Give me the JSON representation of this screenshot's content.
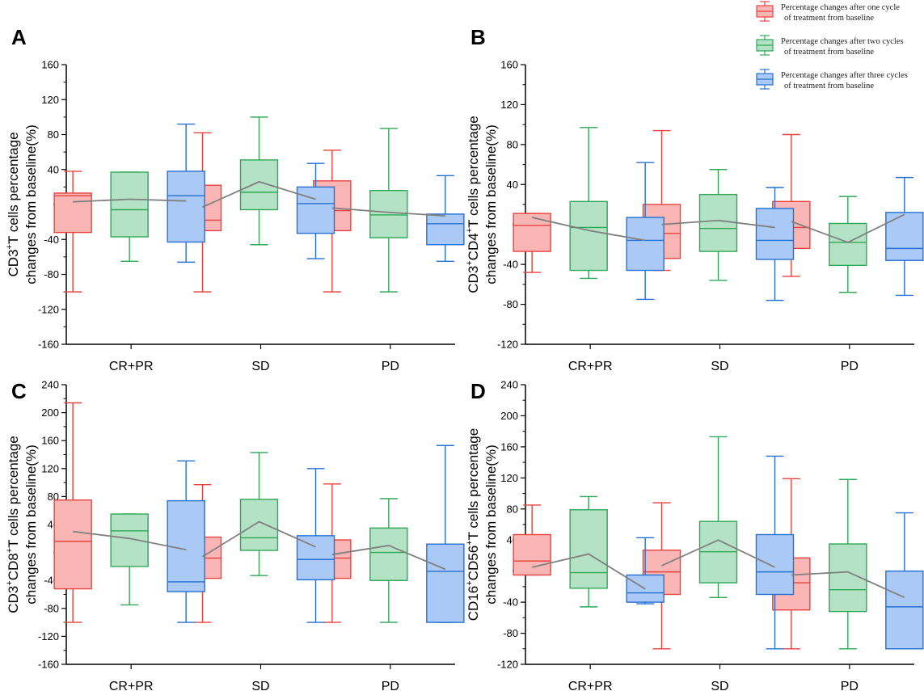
{
  "colors": {
    "red": "#e8423e",
    "red_fill": "#f9b6b4",
    "green": "#2ea855",
    "green_fill": "#b3e2c4",
    "blue": "#2470d4",
    "blue_fill": "#aacaf5",
    "mean_line": "#808080",
    "axis": "#000000"
  },
  "legend": {
    "entries": [
      {
        "line1": "Percentage changes after one cycle",
        "line2": "of treatment from baseline",
        "color": "red"
      },
      {
        "line1": "Percentage changes after two cycles",
        "line2": "of treatment from baseline",
        "color": "green"
      },
      {
        "line1": "Percentage changes after three cycles",
        "line2": "of treatment from baseline",
        "color": "blue"
      }
    ]
  },
  "chart_data": [
    {
      "panel": "A",
      "type": "box",
      "ylabel_parts": [
        "CD3",
        "+",
        "T cells percentage"
      ],
      "ylabel_line2": "changes from baseline(%)",
      "ylim": [
        -160,
        160
      ],
      "yticks": [
        -160,
        -120,
        -80,
        -40,
        0,
        40,
        80,
        120,
        160
      ],
      "categories": [
        "CR+PR",
        "SD",
        "PD"
      ],
      "series": [
        {
          "name": "Percentage changes after one cycle of treatment from baseline",
          "color": "red",
          "boxes": [
            [
              -100,
              -32,
              10,
              13,
              38
            ],
            [
              -100,
              -30,
              -18,
              22,
              82
            ],
            [
              -100,
              -30,
              -7,
              27,
              62
            ]
          ],
          "means": [
            3,
            -3,
            -4
          ]
        },
        {
          "name": "Percentage changes after two cycles of treatment from baseline",
          "color": "green",
          "boxes": [
            [
              -65,
              -37,
              -6,
              37,
              37
            ],
            [
              -46,
              -6,
              14,
              51,
              100
            ],
            [
              -100,
              -38,
              -12,
              16,
              87
            ]
          ],
          "means": [
            6,
            26,
            -9
          ]
        },
        {
          "name": "Percentage changes after three cycles of treatment from baseline",
          "color": "blue",
          "boxes": [
            [
              -66,
              -43,
              10,
              38,
              92
            ],
            [
              -62,
              -33,
              1,
              20,
              47
            ],
            [
              -65,
              -46,
              -22,
              -11,
              33
            ]
          ],
          "means": [
            4,
            6,
            -13
          ]
        }
      ]
    },
    {
      "panel": "B",
      "type": "box",
      "ylabel_parts": [
        "CD3",
        "+",
        "CD4",
        "+",
        "T cells percentage"
      ],
      "ylabel_line2": "changes from baseline(%)",
      "ylim": [
        -120,
        160
      ],
      "yticks": [
        -120,
        -80,
        -40,
        0,
        40,
        80,
        120,
        160
      ],
      "categories": [
        "CR+PR",
        "SD",
        "PD"
      ],
      "series": [
        {
          "name": "Percentage changes after one cycle of treatment from baseline",
          "color": "red",
          "boxes": [
            [
              -48,
              -27,
              -1,
              11,
              11
            ],
            [
              -46,
              -34,
              -9,
              20,
              94
            ],
            [
              -52,
              -24,
              -3,
              23,
              90
            ]
          ],
          "means": [
            7,
            0,
            3
          ]
        },
        {
          "name": "Percentage changes after two cycles of treatment from baseline",
          "color": "green",
          "boxes": [
            [
              -54,
              -46,
              -3,
              23,
              97
            ],
            [
              -56,
              -27,
              -4,
              30,
              55
            ],
            [
              -68,
              -41,
              -18,
              1,
              28
            ]
          ],
          "means": [
            -6,
            4,
            -18
          ]
        },
        {
          "name": "Percentage changes after three cycles of treatment from baseline",
          "color": "blue",
          "boxes": [
            [
              -75,
              -46,
              -16,
              7,
              62
            ],
            [
              -76,
              -35,
              -16,
              16,
              37
            ],
            [
              -71,
              -36,
              -24,
              12,
              47
            ]
          ],
          "means": [
            -16,
            -3,
            10
          ]
        }
      ]
    },
    {
      "panel": "C",
      "type": "box",
      "ylabel_parts": [
        "CD3",
        "+",
        "CD8",
        "+",
        "T cells percentage"
      ],
      "ylabel_line2": "changes from baseline(%)",
      "ylim": [
        -160,
        240
      ],
      "yticks": [
        -160,
        -120,
        -80,
        -40,
        0,
        40,
        80,
        120,
        160,
        200,
        240
      ],
      "categories": [
        "CR+PR",
        "SD",
        "PD"
      ],
      "series": [
        {
          "name": "Percentage changes after one cycle of treatment from baseline",
          "color": "red",
          "boxes": [
            [
              -100,
              -52,
              16,
              75,
              214
            ],
            [
              -100,
              -37,
              -8,
              22,
              97
            ],
            [
              -100,
              -37,
              -8,
              18,
              98
            ]
          ],
          "means": [
            30,
            -6,
            -3
          ]
        },
        {
          "name": "Percentage changes after two cycles of treatment from baseline",
          "color": "green",
          "boxes": [
            [
              -75,
              -20,
              31,
              55,
              55
            ],
            [
              -33,
              3,
              21,
              76,
              143
            ],
            [
              -100,
              -40,
              0,
              35,
              77
            ]
          ],
          "means": [
            20,
            44,
            10
          ]
        },
        {
          "name": "Percentage changes after three cycles of treatment from baseline",
          "color": "blue",
          "boxes": [
            [
              -100,
              -56,
              -42,
              74,
              131
            ],
            [
              -100,
              -39,
              -10,
              24,
              120
            ],
            [
              -100,
              -100,
              -27,
              12,
              153
            ]
          ],
          "means": [
            4,
            8,
            -24
          ]
        }
      ]
    },
    {
      "panel": "D",
      "type": "box",
      "ylabel_parts": [
        "CD16",
        "+",
        "CD56",
        "+",
        "T cells percentage"
      ],
      "ylabel_line2": "changes from baseline(%)",
      "ylim": [
        -120,
        240
      ],
      "yticks": [
        -120,
        -80,
        -40,
        0,
        40,
        80,
        120,
        160,
        200,
        240
      ],
      "categories": [
        "CR+PR",
        "SD",
        "PD"
      ],
      "series": [
        {
          "name": "Percentage changes after one cycle of treatment from baseline",
          "color": "red",
          "boxes": [
            [
              -5,
              -5,
              13,
              47,
              85
            ],
            [
              -100,
              -30,
              -1,
              27,
              88
            ],
            [
              -100,
              -50,
              -15,
              17,
              119
            ]
          ],
          "means": [
            5,
            7,
            -5
          ]
        },
        {
          "name": "Percentage changes after two cycles of treatment from baseline",
          "color": "green",
          "boxes": [
            [
              -46,
              -22,
              -2,
              79,
              96
            ],
            [
              -34,
              -15,
              25,
              64,
              173
            ],
            [
              -100,
              -52,
              -24,
              35,
              118
            ]
          ],
          "means": [
            22,
            40,
            -1
          ]
        },
        {
          "name": "Percentage changes after three cycles of treatment from baseline",
          "color": "blue",
          "boxes": [
            [
              -42,
              -40,
              -28,
              -5,
              43
            ],
            [
              -100,
              -30,
              -1,
              47,
              148
            ],
            [
              -100,
              -100,
              -46,
              0,
              75
            ]
          ],
          "means": [
            -23,
            5,
            -34
          ]
        }
      ]
    }
  ]
}
